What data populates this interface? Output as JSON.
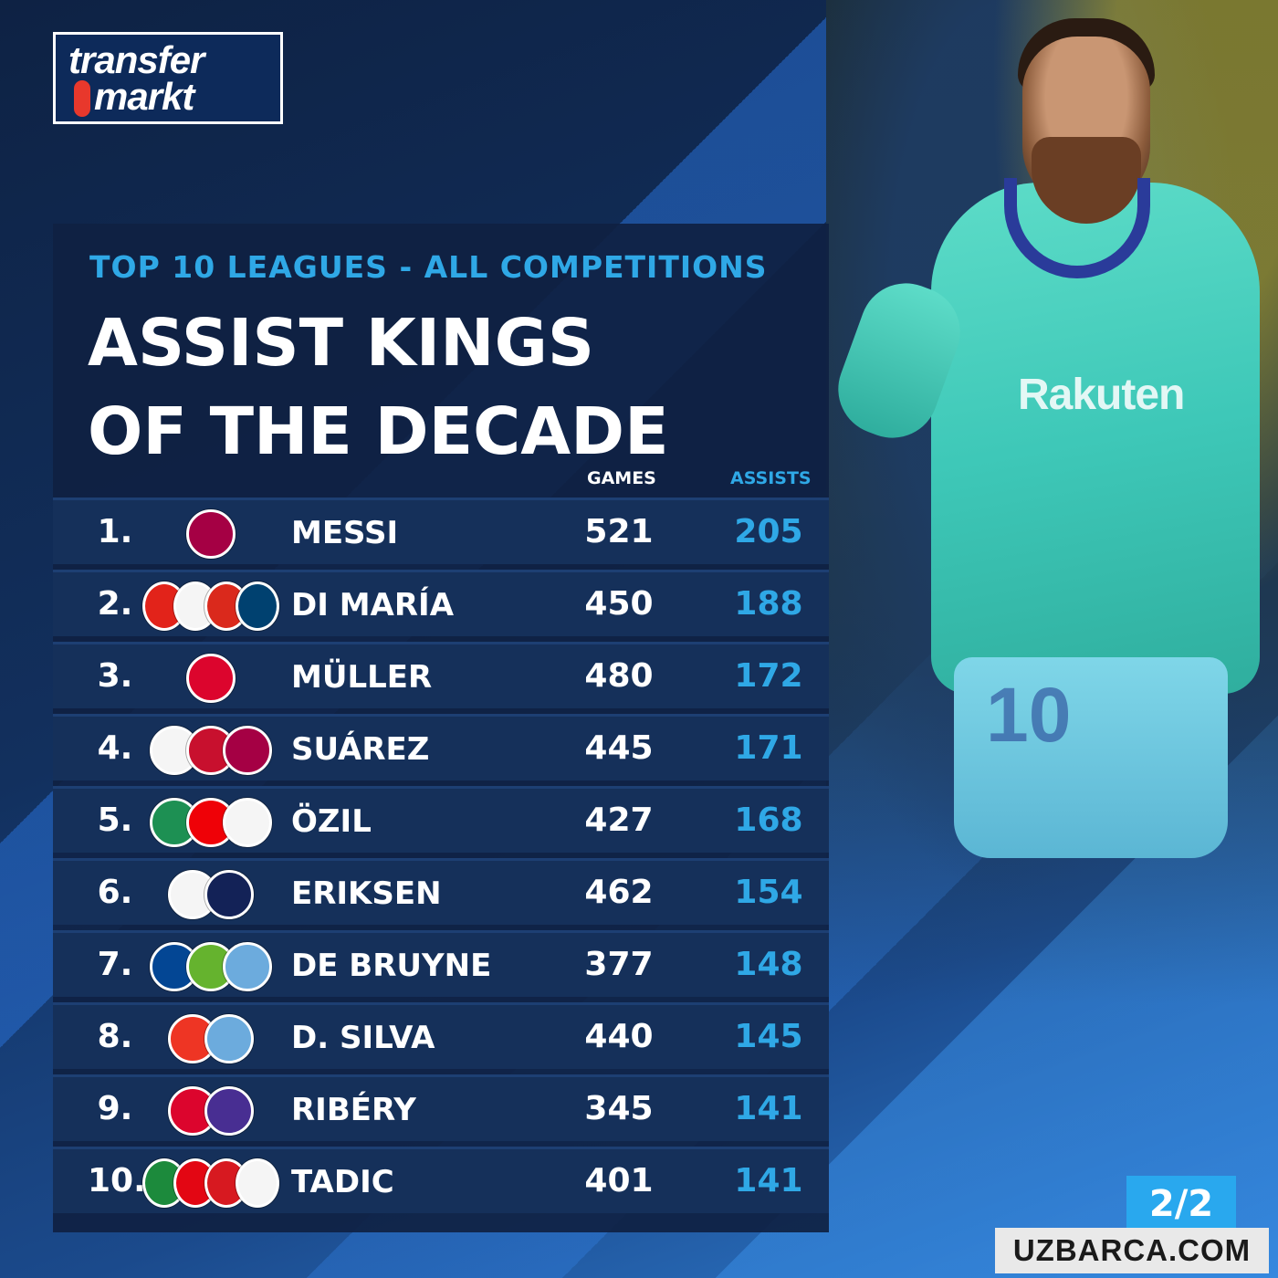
{
  "brand": {
    "line1": "transfer",
    "line2": "markt"
  },
  "subtitle": "TOP 10 LEAGUES - ALL COMPETITIONS",
  "title": "ASSIST KINGS OF THE DECADE",
  "columns": {
    "games": "GAMES",
    "assists": "ASSISTS"
  },
  "players": [
    {
      "rank": "1.",
      "name": "MESSI",
      "games": "521",
      "assists": "205",
      "crests": [
        "barcelona-crest"
      ],
      "crest_colors": [
        "#a50044"
      ]
    },
    {
      "rank": "2.",
      "name": "DI MARÍA",
      "games": "450",
      "assists": "188",
      "crests": [
        "benfica-crest",
        "real-madrid-crest",
        "manchester-united-crest",
        "psg-crest"
      ],
      "crest_colors": [
        "#e2231a",
        "#f5f5f5",
        "#da291c",
        "#004170"
      ]
    },
    {
      "rank": "3.",
      "name": "MÜLLER",
      "games": "480",
      "assists": "172",
      "crests": [
        "bayern-crest"
      ],
      "crest_colors": [
        "#dc052d"
      ]
    },
    {
      "rank": "4.",
      "name": "SUÁREZ",
      "games": "445",
      "assists": "171",
      "crests": [
        "ajax-crest",
        "liverpool-crest",
        "barcelona-crest"
      ],
      "crest_colors": [
        "#f5f5f5",
        "#c8102e",
        "#a50044"
      ]
    },
    {
      "rank": "5.",
      "name": "ÖZIL",
      "games": "427",
      "assists": "168",
      "crests": [
        "werder-bremen-crest",
        "arsenal-crest",
        "real-madrid-crest"
      ],
      "crest_colors": [
        "#1d9053",
        "#ef0107",
        "#f5f5f5"
      ]
    },
    {
      "rank": "6.",
      "name": "ERIKSEN",
      "games": "462",
      "assists": "154",
      "crests": [
        "ajax-crest",
        "tottenham-crest"
      ],
      "crest_colors": [
        "#f5f5f5",
        "#132257"
      ]
    },
    {
      "rank": "7.",
      "name": "DE BRUYNE",
      "games": "377",
      "assists": "148",
      "crests": [
        "chelsea-crest",
        "wolfsburg-crest",
        "manchester-city-crest"
      ],
      "crest_colors": [
        "#034694",
        "#65b32e",
        "#6cabdd"
      ]
    },
    {
      "rank": "8.",
      "name": "D. SILVA",
      "games": "440",
      "assists": "145",
      "crests": [
        "valencia-crest",
        "manchester-city-crest"
      ],
      "crest_colors": [
        "#ee3524",
        "#6cabdd"
      ]
    },
    {
      "rank": "9.",
      "name": "RIBÉRY",
      "games": "345",
      "assists": "141",
      "crests": [
        "bayern-crest",
        "fiorentina-crest"
      ],
      "crest_colors": [
        "#dc052d",
        "#482e92"
      ]
    },
    {
      "rank": "10.",
      "name": "TADIC",
      "games": "401",
      "assists": "141",
      "crests": [
        "groningen-crest",
        "twente-crest",
        "southampton-crest",
        "ajax-crest"
      ],
      "crest_colors": [
        "#1c8a3c",
        "#e30613",
        "#d71920",
        "#f5f5f5"
      ]
    }
  ],
  "photo": {
    "sponsor": "Rakuten",
    "shirt_number": "10"
  },
  "pager": "2/2",
  "watermark": "UZBARCA.COM"
}
